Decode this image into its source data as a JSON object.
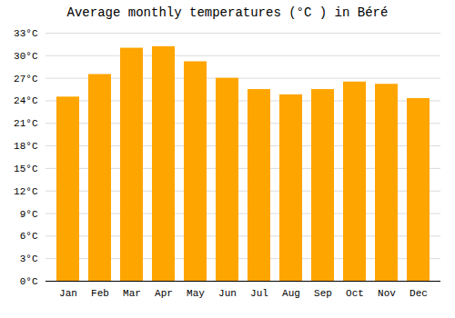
{
  "chart_data": {
    "type": "bar",
    "title": "Average monthly temperatures (°C ) in Béré",
    "categories": [
      "Jan",
      "Feb",
      "Mar",
      "Apr",
      "May",
      "Jun",
      "Jul",
      "Aug",
      "Sep",
      "Oct",
      "Nov",
      "Dec"
    ],
    "values": [
      24.5,
      27.5,
      31.0,
      31.2,
      29.2,
      27.0,
      25.5,
      24.8,
      25.5,
      26.5,
      26.2,
      24.3
    ],
    "color": "#FFA500",
    "ylim": [
      0,
      33
    ],
    "yticks": [
      {
        "value": 0,
        "label": "0°C"
      },
      {
        "value": 3,
        "label": "3°C"
      },
      {
        "value": 6,
        "label": "6°C"
      },
      {
        "value": 9,
        "label": "9°C"
      },
      {
        "value": 12,
        "label": "12°C"
      },
      {
        "value": 15,
        "label": "15°C"
      },
      {
        "value": 18,
        "label": "18°C"
      },
      {
        "value": 21,
        "label": "21°C"
      },
      {
        "value": 24,
        "label": "24°C"
      },
      {
        "value": 27,
        "label": "27°C"
      },
      {
        "value": 30,
        "label": "30°C"
      },
      {
        "value": 33,
        "label": "33°C"
      }
    ],
    "grid": true
  }
}
